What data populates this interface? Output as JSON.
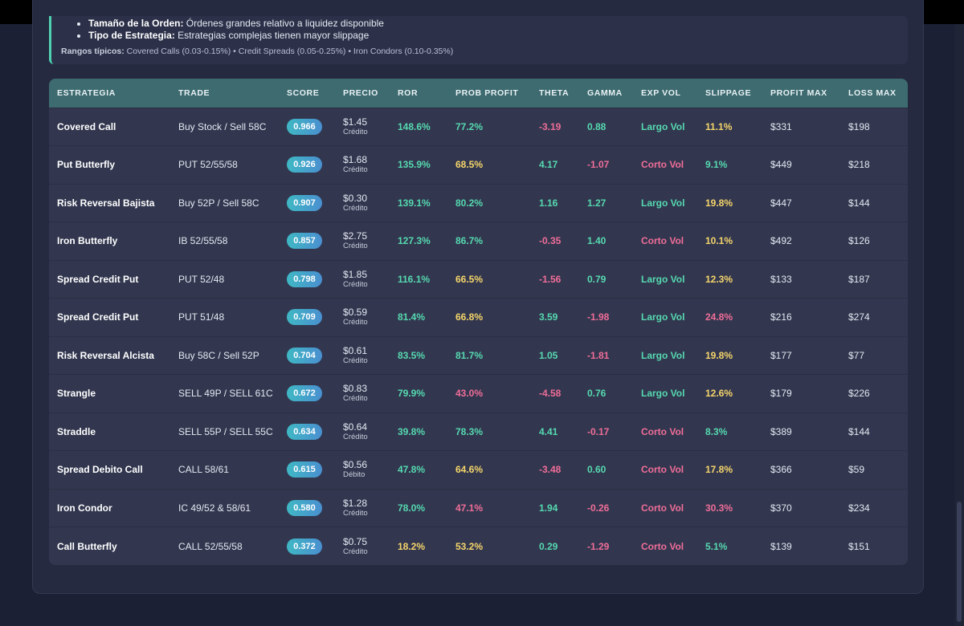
{
  "info": {
    "bullet1_label": "Tamaño de la Orden:",
    "bullet1_text": " Órdenes grandes relativo a liquidez disponible",
    "bullet2_label": "Tipo de Estrategia:",
    "bullet2_text": " Estrategias complejas tienen mayor slippage",
    "ranges_label": "Rangos típicos:",
    "ranges_text": " Covered Calls (0.03-0.15%) • Credit Spreads (0.05-0.25%) • Iron Condors (0.10-0.35%)"
  },
  "table": {
    "headers": [
      "ESTRATEGIA",
      "TRADE",
      "SCORE",
      "PRECIO",
      "ROR",
      "PROB PROFIT",
      "THETA",
      "GAMMA",
      "EXP VOL",
      "SLIPPAGE",
      "PROFIT MAX",
      "LOSS MAX"
    ],
    "rows": [
      {
        "estrategia": "Covered Call",
        "trade": "Buy Stock / Sell 58C",
        "score": "0.966",
        "precio": "$1.45",
        "precio_tipo": "Crédito",
        "ror": "148.6%",
        "ror_color": "green",
        "prob": "77.2%",
        "prob_color": "green",
        "theta": "-3.19",
        "theta_color": "pink",
        "gamma": "0.88",
        "gamma_color": "green",
        "expvol": "Largo Vol",
        "expvol_color": "green",
        "slippage": "11.1%",
        "slip_color": "yellow",
        "profit": "$331",
        "loss": "$198"
      },
      {
        "estrategia": "Put Butterfly",
        "trade": "PUT 52/55/58",
        "score": "0.926",
        "precio": "$1.68",
        "precio_tipo": "Crédito",
        "ror": "135.9%",
        "ror_color": "green",
        "prob": "68.5%",
        "prob_color": "yellow",
        "theta": "4.17",
        "theta_color": "green",
        "gamma": "-1.07",
        "gamma_color": "pink",
        "expvol": "Corto Vol",
        "expvol_color": "pink",
        "slippage": "9.1%",
        "slip_color": "green",
        "profit": "$449",
        "loss": "$218"
      },
      {
        "estrategia": "Risk Reversal Bajista",
        "trade": "Buy 52P / Sell 58C",
        "score": "0.907",
        "precio": "$0.30",
        "precio_tipo": "Crédito",
        "ror": "139.1%",
        "ror_color": "green",
        "prob": "80.2%",
        "prob_color": "green",
        "theta": "1.16",
        "theta_color": "green",
        "gamma": "1.27",
        "gamma_color": "green",
        "expvol": "Largo Vol",
        "expvol_color": "green",
        "slippage": "19.8%",
        "slip_color": "yellow",
        "profit": "$447",
        "loss": "$144"
      },
      {
        "estrategia": "Iron Butterfly",
        "trade": "IB 52/55/58",
        "score": "0.857",
        "precio": "$2.75",
        "precio_tipo": "Crédito",
        "ror": "127.3%",
        "ror_color": "green",
        "prob": "86.7%",
        "prob_color": "green",
        "theta": "-0.35",
        "theta_color": "pink",
        "gamma": "1.40",
        "gamma_color": "green",
        "expvol": "Corto Vol",
        "expvol_color": "pink",
        "slippage": "10.1%",
        "slip_color": "yellow",
        "profit": "$492",
        "loss": "$126"
      },
      {
        "estrategia": "Spread Credit Put",
        "trade": "PUT 52/48",
        "score": "0.798",
        "precio": "$1.85",
        "precio_tipo": "Crédito",
        "ror": "116.1%",
        "ror_color": "green",
        "prob": "66.5%",
        "prob_color": "yellow",
        "theta": "-1.56",
        "theta_color": "pink",
        "gamma": "0.79",
        "gamma_color": "green",
        "expvol": "Largo Vol",
        "expvol_color": "green",
        "slippage": "12.3%",
        "slip_color": "yellow",
        "profit": "$133",
        "loss": "$187"
      },
      {
        "estrategia": "Spread Credit Put",
        "trade": "PUT 51/48",
        "score": "0.709",
        "precio": "$0.59",
        "precio_tipo": "Crédito",
        "ror": "81.4%",
        "ror_color": "green",
        "prob": "66.8%",
        "prob_color": "yellow",
        "theta": "3.59",
        "theta_color": "green",
        "gamma": "-1.98",
        "gamma_color": "pink",
        "expvol": "Largo Vol",
        "expvol_color": "green",
        "slippage": "24.8%",
        "slip_color": "pink",
        "profit": "$216",
        "loss": "$274"
      },
      {
        "estrategia": "Risk Reversal Alcista",
        "trade": "Buy 58C / Sell 52P",
        "score": "0.704",
        "precio": "$0.61",
        "precio_tipo": "Crédito",
        "ror": "83.5%",
        "ror_color": "green",
        "prob": "81.7%",
        "prob_color": "green",
        "theta": "1.05",
        "theta_color": "green",
        "gamma": "-1.81",
        "gamma_color": "pink",
        "expvol": "Largo Vol",
        "expvol_color": "green",
        "slippage": "19.8%",
        "slip_color": "yellow",
        "profit": "$177",
        "loss": "$77"
      },
      {
        "estrategia": "Strangle",
        "trade": "SELL 49P / SELL 61C",
        "score": "0.672",
        "precio": "$0.83",
        "precio_tipo": "Crédito",
        "ror": "79.9%",
        "ror_color": "green",
        "prob": "43.0%",
        "prob_color": "pink",
        "theta": "-4.58",
        "theta_color": "pink",
        "gamma": "0.76",
        "gamma_color": "green",
        "expvol": "Largo Vol",
        "expvol_color": "green",
        "slippage": "12.6%",
        "slip_color": "yellow",
        "profit": "$179",
        "loss": "$226"
      },
      {
        "estrategia": "Straddle",
        "trade": "SELL 55P / SELL 55C",
        "score": "0.634",
        "precio": "$0.64",
        "precio_tipo": "Crédito",
        "ror": "39.8%",
        "ror_color": "green",
        "prob": "78.3%",
        "prob_color": "green",
        "theta": "4.41",
        "theta_color": "green",
        "gamma": "-0.17",
        "gamma_color": "pink",
        "expvol": "Corto Vol",
        "expvol_color": "pink",
        "slippage": "8.3%",
        "slip_color": "green",
        "profit": "$389",
        "loss": "$144"
      },
      {
        "estrategia": "Spread Debito Call",
        "trade": "CALL 58/61",
        "score": "0.615",
        "precio": "$0.56",
        "precio_tipo": "Débito",
        "ror": "47.8%",
        "ror_color": "green",
        "prob": "64.6%",
        "prob_color": "yellow",
        "theta": "-3.48",
        "theta_color": "pink",
        "gamma": "0.60",
        "gamma_color": "green",
        "expvol": "Corto Vol",
        "expvol_color": "pink",
        "slippage": "17.8%",
        "slip_color": "yellow",
        "profit": "$366",
        "loss": "$59"
      },
      {
        "estrategia": "Iron Condor",
        "trade": "IC 49/52 & 58/61",
        "score": "0.580",
        "precio": "$1.28",
        "precio_tipo": "Crédito",
        "ror": "78.0%",
        "ror_color": "green",
        "prob": "47.1%",
        "prob_color": "pink",
        "theta": "1.94",
        "theta_color": "green",
        "gamma": "-0.26",
        "gamma_color": "pink",
        "expvol": "Corto Vol",
        "expvol_color": "pink",
        "slippage": "30.3%",
        "slip_color": "pink",
        "profit": "$370",
        "loss": "$234"
      },
      {
        "estrategia": "Call Butterfly",
        "trade": "CALL 52/55/58",
        "score": "0.372",
        "precio": "$0.75",
        "precio_tipo": "Crédito",
        "ror": "18.2%",
        "ror_color": "yellow",
        "prob": "53.2%",
        "prob_color": "yellow",
        "theta": "0.29",
        "theta_color": "green",
        "gamma": "-1.29",
        "gamma_color": "pink",
        "expvol": "Corto Vol",
        "expvol_color": "pink",
        "slippage": "5.1%",
        "slip_color": "green",
        "profit": "$139",
        "loss": "$151"
      }
    ]
  },
  "colors": {
    "green": "#56d9b0",
    "pink": "#f06d98",
    "yellow": "#f6d56b",
    "header_bg": "#3d6b70",
    "accent": "#4fd1b1"
  }
}
